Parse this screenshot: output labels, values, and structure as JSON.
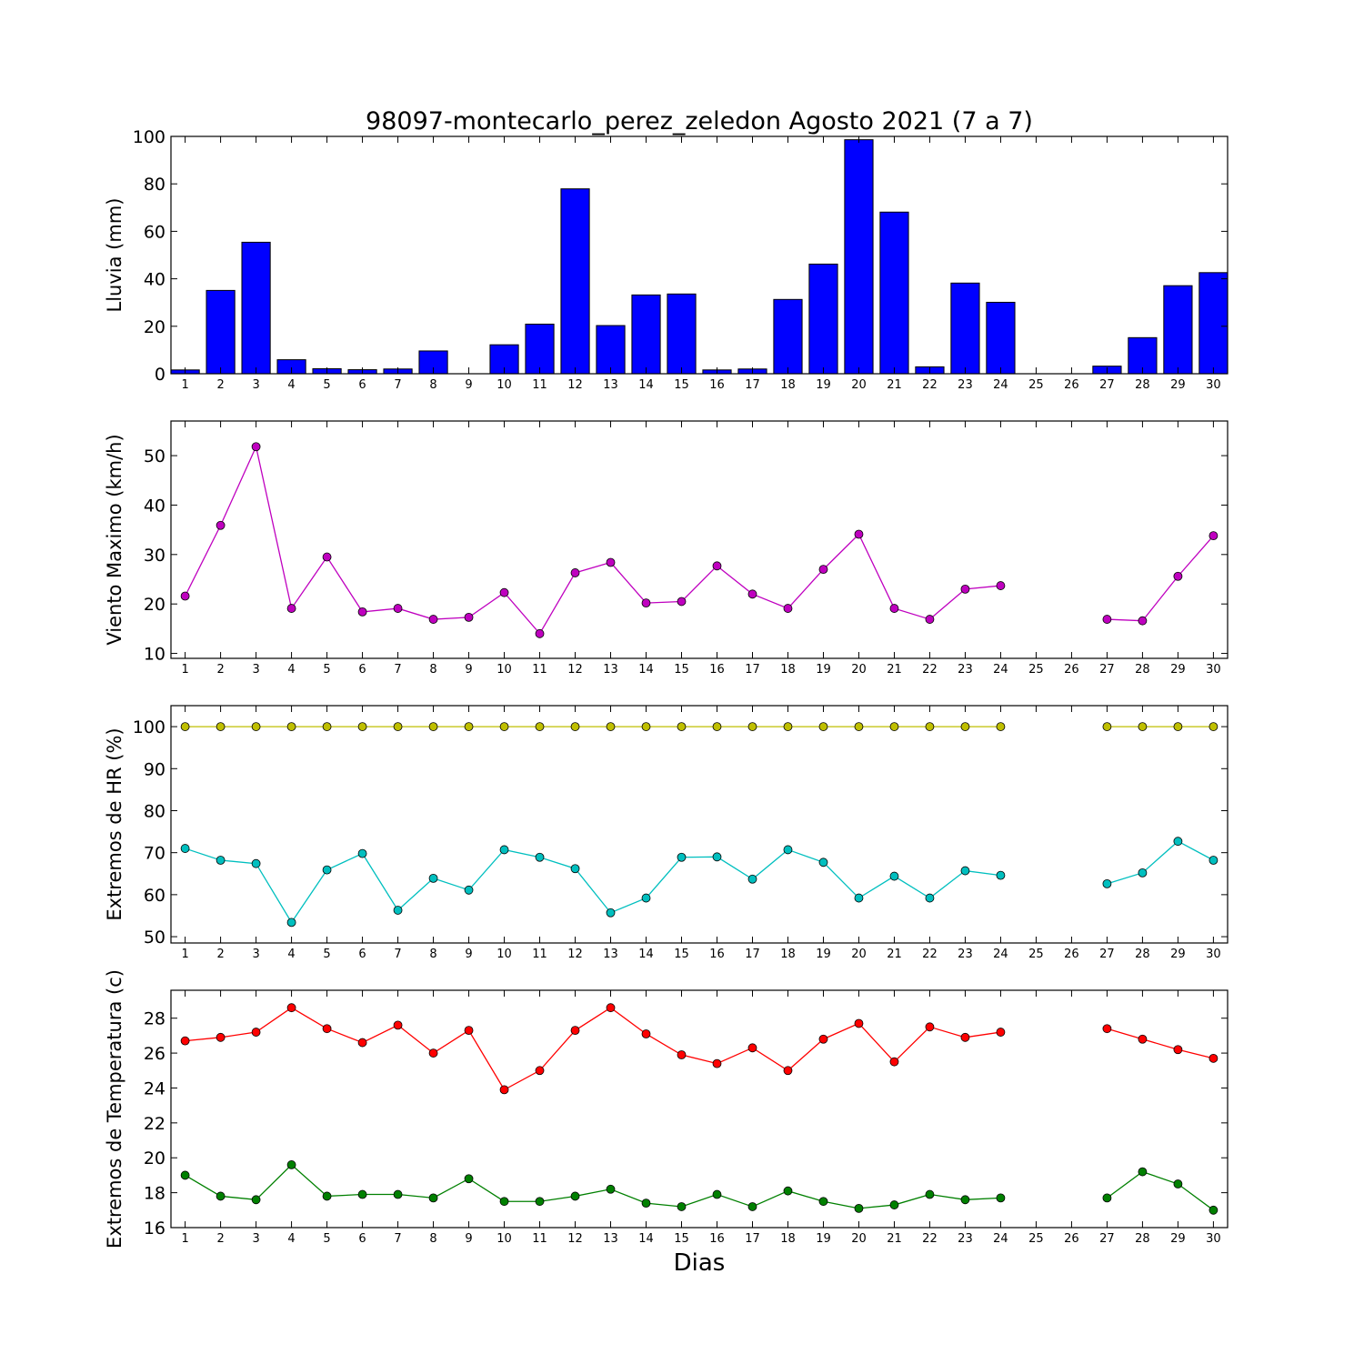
{
  "title": "98097-montecarlo_perez_zeledon Agosto 2021  (7 a 7)",
  "xlabel": "Dias",
  "chart_data": [
    {
      "type": "bar",
      "ylabel": "Lluvia (mm)",
      "ylim": [
        0,
        100
      ],
      "yticks": [
        0,
        20,
        40,
        60,
        80,
        100
      ],
      "categories": [
        1,
        2,
        3,
        4,
        5,
        6,
        7,
        8,
        9,
        10,
        11,
        12,
        13,
        14,
        15,
        16,
        17,
        18,
        19,
        20,
        21,
        22,
        23,
        24,
        25,
        26,
        27,
        28,
        29,
        30
      ],
      "values": [
        1.6,
        35.1,
        55.4,
        5.9,
        2.1,
        1.7,
        2.0,
        9.6,
        0.0,
        12.2,
        20.9,
        77.9,
        20.3,
        33.2,
        33.6,
        1.6,
        2.0,
        31.3,
        46.2,
        98.6,
        68.1,
        2.9,
        38.2,
        30.1,
        null,
        null,
        3.2,
        15.2,
        37.1,
        42.6
      ],
      "color": "#0000ff"
    },
    {
      "type": "line",
      "ylabel": "Viento Maximo (km/h)",
      "ylim": [
        9,
        57
      ],
      "yticks": [
        10,
        20,
        30,
        40,
        50
      ],
      "x": [
        1,
        2,
        3,
        4,
        5,
        6,
        7,
        8,
        9,
        10,
        11,
        12,
        13,
        14,
        15,
        16,
        17,
        18,
        19,
        20,
        21,
        22,
        23,
        24,
        25,
        26,
        27,
        28,
        29,
        30
      ],
      "series": [
        {
          "values": [
            21.6,
            35.9,
            51.8,
            19.1,
            29.5,
            18.4,
            19.1,
            16.9,
            17.3,
            22.3,
            14.0,
            26.3,
            28.4,
            20.2,
            20.5,
            27.7,
            22.0,
            19.1,
            27.0,
            34.1,
            19.1,
            16.9,
            23.0,
            23.7,
            null,
            null,
            16.9,
            16.6,
            25.6,
            33.8
          ],
          "color": "#bf00bf"
        }
      ]
    },
    {
      "type": "line",
      "ylabel": "Extremos de HR (%)",
      "ylim": [
        48.5,
        105
      ],
      "yticks": [
        50,
        60,
        70,
        80,
        90,
        100
      ],
      "x": [
        1,
        2,
        3,
        4,
        5,
        6,
        7,
        8,
        9,
        10,
        11,
        12,
        13,
        14,
        15,
        16,
        17,
        18,
        19,
        20,
        21,
        22,
        23,
        24,
        25,
        26,
        27,
        28,
        29,
        30
      ],
      "series": [
        {
          "values": [
            100,
            100,
            100,
            100,
            100,
            100,
            100,
            100,
            100,
            100,
            100,
            100,
            100,
            100,
            100,
            100,
            100,
            100,
            100,
            100,
            100,
            100,
            100,
            100,
            null,
            null,
            100,
            100,
            100,
            100
          ],
          "color": "#bfbf00"
        },
        {
          "values": [
            71.0,
            68.2,
            67.4,
            53.4,
            65.9,
            69.8,
            56.3,
            63.9,
            61.1,
            70.7,
            68.9,
            66.2,
            55.7,
            59.2,
            68.9,
            69.0,
            63.7,
            70.7,
            67.7,
            59.2,
            64.4,
            59.2,
            65.7,
            64.6,
            null,
            null,
            62.6,
            65.2,
            72.7,
            68.2
          ],
          "color": "#00bfbf"
        }
      ]
    },
    {
      "type": "line",
      "ylabel": "Extremos de Temperatura (c)",
      "ylim": [
        16,
        29.6
      ],
      "yticks": [
        16,
        18,
        20,
        22,
        24,
        26,
        28
      ],
      "x": [
        1,
        2,
        3,
        4,
        5,
        6,
        7,
        8,
        9,
        10,
        11,
        12,
        13,
        14,
        15,
        16,
        17,
        18,
        19,
        20,
        21,
        22,
        23,
        24,
        25,
        26,
        27,
        28,
        29,
        30
      ],
      "series": [
        {
          "values": [
            26.7,
            26.9,
            27.2,
            28.6,
            27.4,
            26.6,
            27.6,
            26.0,
            27.3,
            23.9,
            25.0,
            27.3,
            28.6,
            27.1,
            25.9,
            25.4,
            26.3,
            25.0,
            26.8,
            27.7,
            25.5,
            27.5,
            26.9,
            27.2,
            null,
            null,
            27.4,
            26.8,
            26.2,
            25.7
          ],
          "color": "#ff0000"
        },
        {
          "values": [
            19.0,
            17.8,
            17.6,
            19.6,
            17.8,
            17.9,
            17.9,
            17.7,
            18.8,
            17.5,
            17.5,
            17.8,
            18.2,
            17.4,
            17.2,
            17.9,
            17.2,
            18.1,
            17.5,
            17.1,
            17.3,
            17.9,
            17.6,
            17.7,
            null,
            null,
            17.7,
            19.2,
            18.5,
            17.0
          ],
          "color": "#008000"
        }
      ]
    }
  ]
}
